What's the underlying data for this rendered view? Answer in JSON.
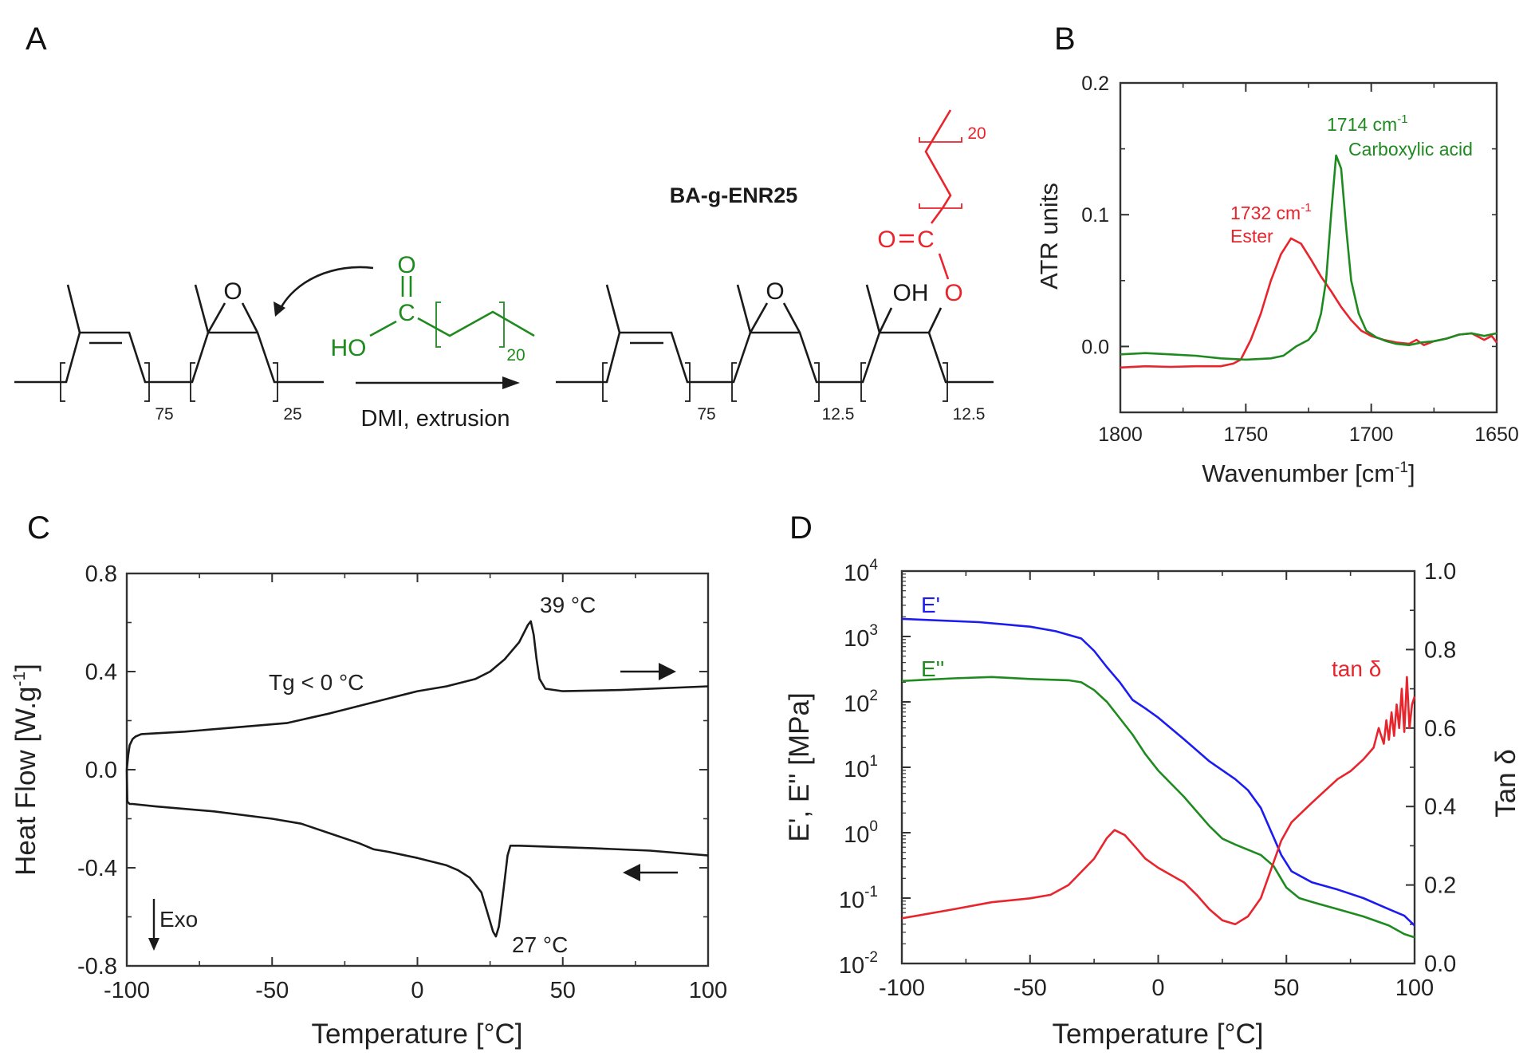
{
  "panel_labels": {
    "a": "A",
    "b": "B",
    "c": "C",
    "d": "D"
  },
  "colors": {
    "black": "#1a1a1a",
    "green": "#1f8a1f",
    "red": "#e8242c",
    "blue": "#1c1cf0"
  },
  "scheme": {
    "reactant_epoxide_o": "O",
    "acid_o": "O",
    "acid_c": "C",
    "acid_ho": "HO",
    "acid_n": "20",
    "reactant_n1": "75",
    "reactant_n2": "25",
    "conditions": "DMI, extrusion",
    "product_name": "BA-g-ENR25",
    "product_epoxide_o": "O",
    "product_oh": "OH",
    "product_ester_o": "O",
    "product_carbonyl_o": "O",
    "product_carbonyl_c": "C",
    "product_chain_n": "20",
    "product_n1": "75",
    "product_n2": "12.5",
    "product_n3": "12.5"
  },
  "chart_data": [
    {
      "panel": "B",
      "type": "line",
      "xlabel": {
        "text": "Wavenumber [cm",
        "sup": "-1",
        "end": "]"
      },
      "ylabel": "ATR units",
      "xlim": [
        1800,
        1650
      ],
      "ylim": [
        -0.05,
        0.2
      ],
      "xticks": [
        "1800",
        "1750",
        "1700",
        "1650"
      ],
      "xtick_values": [
        1800,
        1750,
        1700,
        1650
      ],
      "yticks": [
        "0.0",
        "0.1",
        "0.2"
      ],
      "ytick_values": [
        0,
        0.1,
        0.2
      ],
      "grid": false,
      "annotations": [
        {
          "text": "1714 cm",
          "sup": "-1",
          "color": "green"
        },
        {
          "text": "Carboxylic acid",
          "color": "green"
        },
        {
          "text": "1732 cm",
          "sup": "-1",
          "color": "red"
        },
        {
          "text": "Ester",
          "color": "red"
        }
      ],
      "series": [
        {
          "name": "Ester",
          "color": "red",
          "x": [
            1800,
            1790,
            1780,
            1770,
            1760,
            1755,
            1752,
            1748,
            1744,
            1740,
            1736,
            1732,
            1728,
            1724,
            1720,
            1716,
            1712,
            1708,
            1704,
            1700,
            1695,
            1690,
            1685,
            1682,
            1679,
            1675,
            1670,
            1665,
            1660,
            1655,
            1652,
            1650
          ],
          "y": [
            -0.016,
            -0.015,
            -0.0155,
            -0.015,
            -0.015,
            -0.013,
            -0.01,
            0.005,
            0.025,
            0.05,
            0.07,
            0.082,
            0.078,
            0.066,
            0.053,
            0.042,
            0.03,
            0.02,
            0.012,
            0.008,
            0.005,
            0.003,
            0.002,
            0.005,
            0.001,
            0.004,
            0.006,
            0.009,
            0.01,
            0.005,
            0.008,
            0.003
          ]
        },
        {
          "name": "Carboxylic acid",
          "color": "green",
          "x": [
            1800,
            1790,
            1780,
            1770,
            1760,
            1750,
            1740,
            1735,
            1730,
            1725,
            1722,
            1720,
            1718,
            1716,
            1714,
            1712,
            1710,
            1708,
            1705,
            1702,
            1698,
            1694,
            1690,
            1685,
            1680,
            1675,
            1670,
            1665,
            1660,
            1655,
            1650
          ],
          "y": [
            -0.006,
            -0.005,
            -0.006,
            -0.007,
            -0.009,
            -0.01,
            -0.009,
            -0.007,
            0.0,
            0.005,
            0.012,
            0.025,
            0.05,
            0.1,
            0.145,
            0.135,
            0.09,
            0.05,
            0.025,
            0.012,
            0.007,
            0.004,
            0.002,
            0.001,
            0.003,
            0.004,
            0.006,
            0.009,
            0.01,
            0.008,
            0.01
          ]
        }
      ]
    },
    {
      "panel": "C",
      "type": "line",
      "xlabel": {
        "text": "Temperature [°C]"
      },
      "ylabel": {
        "text": "Heat Flow [W.g",
        "sup": "-1",
        "end": "]"
      },
      "xlim": [
        -100,
        100
      ],
      "ylim": [
        -0.8,
        0.8
      ],
      "xticks": [
        "-100",
        "-50",
        "0",
        "50",
        "100"
      ],
      "xtick_values": [
        -100,
        -50,
        0,
        50,
        100
      ],
      "yticks": [
        "-0.8",
        "-0.4",
        "0.0",
        "0.4",
        "0.8"
      ],
      "ytick_values": [
        -0.8,
        -0.4,
        0,
        0.4,
        0.8
      ],
      "grid": false,
      "annotations": [
        {
          "text": "39 °C"
        },
        {
          "text": "Tg < 0 °C"
        },
        {
          "text": "27 °C"
        },
        {
          "text": "Exo"
        }
      ],
      "series": [
        {
          "name": "heating",
          "color": "black",
          "x": [
            -100,
            -99.5,
            -99,
            -98,
            -97,
            -95,
            -80,
            -60,
            -45,
            -30,
            -20,
            -10,
            0,
            10,
            20,
            25,
            30,
            35,
            38,
            39,
            40,
            41,
            42,
            44,
            50,
            70,
            100
          ],
          "y": [
            0.0,
            0.06,
            0.1,
            0.125,
            0.135,
            0.145,
            0.155,
            0.175,
            0.19,
            0.23,
            0.26,
            0.29,
            0.32,
            0.34,
            0.37,
            0.4,
            0.45,
            0.52,
            0.59,
            0.605,
            0.55,
            0.45,
            0.37,
            0.33,
            0.32,
            0.325,
            0.34
          ]
        },
        {
          "name": "cooling",
          "color": "black",
          "x": [
            -100,
            -99.8,
            -99,
            -98,
            -90,
            -70,
            -50,
            -40,
            -30,
            -20,
            -15,
            -10,
            0,
            10,
            14,
            18,
            22,
            24,
            26,
            27,
            28,
            29,
            30,
            31,
            32,
            35,
            60,
            80,
            100
          ],
          "y": [
            0.0,
            -0.13,
            -0.14,
            -0.14,
            -0.15,
            -0.17,
            -0.2,
            -0.22,
            -0.26,
            -0.3,
            -0.325,
            -0.335,
            -0.36,
            -0.39,
            -0.41,
            -0.44,
            -0.5,
            -0.58,
            -0.66,
            -0.68,
            -0.64,
            -0.55,
            -0.45,
            -0.35,
            -0.31,
            -0.31,
            -0.32,
            -0.33,
            -0.35
          ]
        }
      ]
    },
    {
      "panel": "D",
      "type": "line",
      "xlabel": {
        "text": "Temperature [°C]"
      },
      "ylabel": "E', E'' [MPa]",
      "y2label": "Tan δ",
      "xlim": [
        -100,
        100
      ],
      "ylim_log10": [
        -2,
        4
      ],
      "y2lim": [
        0,
        1.0
      ],
      "xticks": [
        "-100",
        "-50",
        "0",
        "50",
        "100"
      ],
      "xtick_values": [
        -100,
        -50,
        0,
        50,
        100
      ],
      "ytick_base": "10",
      "ytick_exponents": [
        "-2",
        "-1",
        "0",
        "1",
        "2",
        "3",
        "4"
      ],
      "y2ticks": [
        "0.0",
        "0.2",
        "0.4",
        "0.6",
        "0.8",
        "1.0"
      ],
      "y2tick_values": [
        0,
        0.2,
        0.4,
        0.6,
        0.8,
        1.0
      ],
      "grid": false,
      "annotations": [
        {
          "text": "E'",
          "color": "blue"
        },
        {
          "text": "E''",
          "color": "green"
        },
        {
          "text": "tan δ",
          "color": "red"
        }
      ],
      "series": [
        {
          "name": "E'",
          "color": "blue",
          "axis": "left-log",
          "x": [
            -100,
            -70,
            -50,
            -40,
            -30,
            -25,
            -20,
            -15,
            -10,
            -5,
            0,
            10,
            20,
            30,
            35,
            40,
            45,
            48,
            52,
            60,
            70,
            80,
            90,
            96,
            100
          ],
          "log10_y": [
            3.27,
            3.22,
            3.15,
            3.08,
            2.97,
            2.78,
            2.53,
            2.3,
            2.03,
            1.9,
            1.76,
            1.43,
            1.09,
            0.82,
            0.65,
            0.38,
            -0.07,
            -0.34,
            -0.59,
            -0.76,
            -0.87,
            -1.0,
            -1.17,
            -1.27,
            -1.42
          ]
        },
        {
          "name": "E''",
          "color": "green",
          "axis": "left-log",
          "x": [
            -100,
            -80,
            -65,
            -50,
            -35,
            -30,
            -25,
            -20,
            -15,
            -10,
            -5,
            0,
            10,
            20,
            25,
            30,
            40,
            45,
            50,
            55,
            60,
            70,
            80,
            90,
            96,
            100
          ],
          "log10_y": [
            2.32,
            2.36,
            2.38,
            2.35,
            2.33,
            2.3,
            2.18,
            2.0,
            1.75,
            1.5,
            1.2,
            0.95,
            0.55,
            0.1,
            -0.09,
            -0.18,
            -0.34,
            -0.51,
            -0.84,
            -1.0,
            -1.06,
            -1.17,
            -1.28,
            -1.42,
            -1.55,
            -1.6
          ]
        },
        {
          "name": "tan δ",
          "color": "red",
          "axis": "right",
          "x": [
            -100,
            -80,
            -65,
            -50,
            -42,
            -35,
            -25,
            -20,
            -17,
            -13,
            -8,
            -5,
            0,
            10,
            15,
            20,
            25,
            30,
            35,
            40,
            45,
            48,
            52,
            60,
            70,
            75,
            80,
            84,
            86,
            88,
            89,
            90,
            91,
            92,
            93,
            94,
            95,
            96,
            97,
            98,
            99,
            100
          ],
          "y": [
            0.115,
            0.138,
            0.156,
            0.166,
            0.175,
            0.2,
            0.267,
            0.32,
            0.34,
            0.327,
            0.29,
            0.267,
            0.244,
            0.207,
            0.175,
            0.138,
            0.11,
            0.1,
            0.12,
            0.166,
            0.258,
            0.313,
            0.36,
            0.41,
            0.47,
            0.49,
            0.52,
            0.55,
            0.6,
            0.56,
            0.62,
            0.57,
            0.64,
            0.58,
            0.66,
            0.6,
            0.7,
            0.59,
            0.73,
            0.6,
            0.66,
            0.68
          ]
        }
      ]
    }
  ]
}
